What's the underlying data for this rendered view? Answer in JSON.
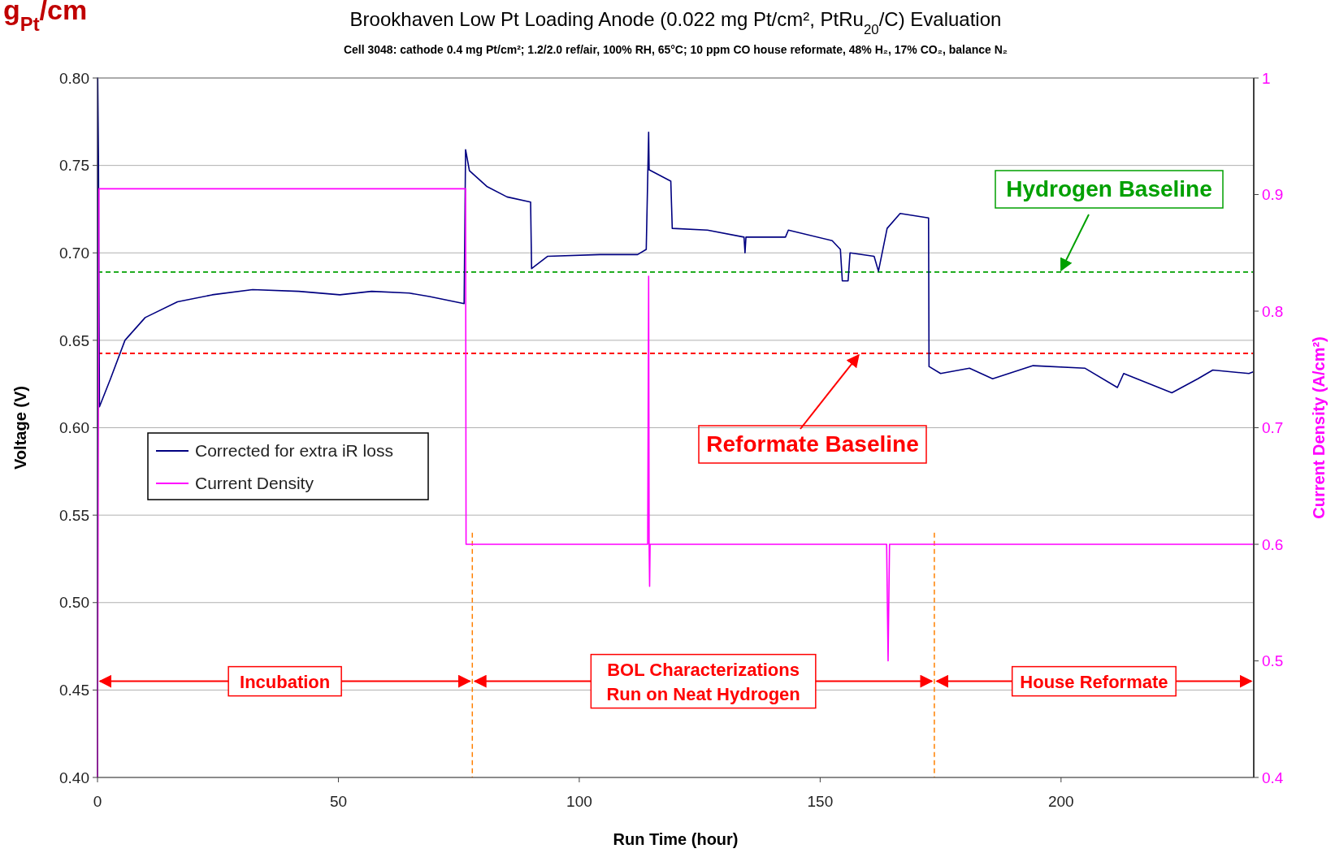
{
  "chart_data": {
    "type": "line",
    "title": "Brookhaven Low Pt Loading Anode (0.022 mg Pt/cm², PtRu$_{20}$/C) Evaluation",
    "subtitle": "Cell 3048: cathode 0.4 mg Pt/cm²; 1.2/2.0 ref/air, 100% RH, 65°C; 10 ppm CO house reformate, 48% H₂, 17% CO₂, balance N₂",
    "xlabel": "Run Time (hour)",
    "ylabel": "Voltage (V)",
    "y2label": "Current Density (A/cm²)",
    "annotations": [
      "Incubation",
      "BOL Characterizations\nRun on Neat Hydrogen",
      "House Reformate",
      "g$_{Pt}$/cm"
    ],
    "xlim": [
      0,
      240
    ],
    "xticks": [
      0,
      50,
      100,
      150,
      200
    ],
    "ylim": [
      0.4,
      0.8
    ],
    "yticks": [
      {
        "value": 0.4,
        "label": "0.40"
      },
      {
        "value": 0.45,
        "label": "0.45"
      },
      {
        "value": 0.5,
        "label": "0.50"
      },
      {
        "value": 0.55,
        "label": "0.55"
      },
      {
        "value": 0.6,
        "label": "0.60"
      },
      {
        "value": 0.65,
        "label": "0.65"
      },
      {
        "value": 0.7,
        "label": "0.70"
      },
      {
        "value": 0.75,
        "label": "0.75"
      },
      {
        "value": 0.8,
        "label": "0.80"
      }
    ],
    "y2lim": [
      0.4,
      1
    ],
    "y2ticks": [
      0.4,
      0.5,
      0.6,
      0.7,
      0.8,
      0.9,
      1
    ],
    "grid": "y",
    "legend": "left",
    "marker": "none",
    "line_style": "solid",
    "series": [
      {
        "name": "Corrected for extra iR loss",
        "color": "#000080",
        "x": [
          0,
          0.05,
          0.2,
          0.4,
          2.7,
          5.7,
          9.9,
          16.6,
          23.8,
          32.2,
          41.8,
          50.3,
          56.9,
          64.7,
          68.9,
          76.1,
          76.4,
          77.2,
          80.8,
          85,
          89.9,
          90.1,
          93.4,
          104.3,
          112.1,
          113.9,
          114.4,
          114.5,
          119,
          119.3,
          126.6,
          134.2,
          134.4,
          134.6,
          142.8,
          143.4,
          152.5,
          154.2,
          154.6,
          155.8,
          156.2,
          161.2,
          162.1,
          163.9,
          166.6,
          172.5,
          172.6,
          175,
          181,
          185.8,
          194.2,
          205,
          211.7,
          213,
          223,
          228.4,
          231.5,
          239,
          240
        ],
        "values": [
          0.4,
          0.8,
          0.755,
          0.612,
          0.628,
          0.65,
          0.663,
          0.672,
          0.676,
          0.679,
          0.678,
          0.676,
          0.678,
          0.677,
          0.675,
          0.671,
          0.759,
          0.747,
          0.738,
          0.732,
          0.729,
          0.691,
          0.698,
          0.699,
          0.699,
          0.702,
          0.769,
          0.7475,
          0.741,
          0.714,
          0.713,
          0.709,
          0.7,
          0.709,
          0.709,
          0.713,
          0.707,
          0.702,
          0.684,
          0.684,
          0.7,
          0.698,
          0.6895,
          0.714,
          0.7225,
          0.72,
          0.635,
          0.631,
          0.634,
          0.628,
          0.6355,
          0.634,
          0.623,
          0.631,
          0.62,
          0.628,
          0.633,
          0.631,
          0.632
        ]
      },
      {
        "name": "Current Density",
        "color": "#ff00ff",
        "axis": "y2",
        "x": [
          0,
          0.3,
          76.4,
          76.5,
          114.2,
          114.4,
          114.5,
          114.6,
          114.7,
          163.8,
          164.1,
          164.4,
          240
        ],
        "values": [
          0.4,
          0.905,
          0.905,
          0.6,
          0.6,
          0.83,
          0.6,
          0.564,
          0.6,
          0.6,
          0.5,
          0.6,
          0.6
        ]
      }
    ],
    "ref_lines": [
      {
        "axis": "y",
        "value": 0.689,
        "label": "Hydrogen Baseline",
        "color": "#00a000",
        "line_style": "dashed"
      },
      {
        "axis": "y",
        "value": 0.6425,
        "label": "Reformate Baseline",
        "color": "#ff0000",
        "line_style": "dashed"
      },
      {
        "axis": "x",
        "value": 77.8,
        "color": "#ff8000",
        "line_style": "dashed"
      },
      {
        "axis": "x",
        "value": 173.7,
        "color": "#ff8000",
        "line_style": "dashed"
      }
    ]
  }
}
